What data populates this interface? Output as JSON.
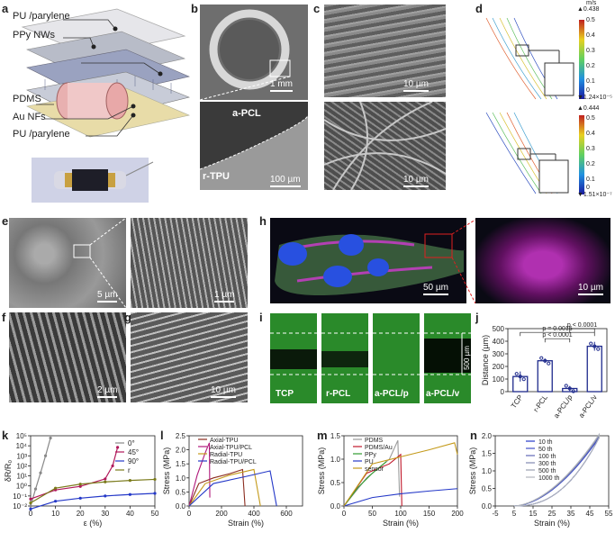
{
  "panels": {
    "a": {
      "label": "a",
      "layers": [
        "PU /parylene",
        "PPy NWs",
        "PDMS",
        "Au NFs",
        "PU /parylene"
      ]
    },
    "b": {
      "label": "b",
      "scale_top": "1 mm",
      "scale_bot": "100 µm",
      "text1": "a-PCL",
      "text2": "r-TPU"
    },
    "c": {
      "label": "c",
      "scale_top": "10 µm",
      "scale_bot": "10 µm"
    },
    "d": {
      "label": "d",
      "unit": "m/s",
      "max1": "▲0.438",
      "min1": "▼1.24×10⁻⁵",
      "max2": "▲0.444",
      "min2": "▼1.51×10⁻⁷",
      "ticks1": [
        "0.4",
        "0.3",
        "0.2",
        "0.1",
        "0"
      ],
      "ticks2": [
        "0.4",
        "0.3",
        "0.2",
        "0.1",
        "0"
      ],
      "ticks_top1": "0.5",
      "ticks_top2": "0.5"
    },
    "e": {
      "label": "e",
      "scale_left": "5 µm",
      "scale_right": "1 µm"
    },
    "f": {
      "label": "f",
      "scale": "2 µm"
    },
    "g": {
      "label": "g",
      "scale": "10 µm"
    },
    "h": {
      "label": "h",
      "scale_left": "50 µm",
      "scale_right": "10 µm"
    },
    "i": {
      "label": "i",
      "tiles": [
        "TCP",
        "r-PCL",
        "a-PCL/p",
        "a-PCL/v"
      ],
      "scale": "500 µm"
    },
    "j": {
      "label": "j"
    },
    "k": {
      "label": "k"
    },
    "l": {
      "label": "l"
    },
    "m": {
      "label": "m"
    },
    "n": {
      "label": "n"
    }
  },
  "colors": {
    "green": "#2e9b2e",
    "magenta": "#d23ad2",
    "blue": "#2438c8",
    "navy": "#1e2a8c"
  },
  "chart_data": [
    {
      "id": "j",
      "type": "bar",
      "title": "",
      "categories": [
        "TCP",
        "r-PCL",
        "a-PCL/p",
        "a-PCL/v"
      ],
      "values": [
        120,
        245,
        25,
        360
      ],
      "errors": [
        40,
        18,
        20,
        35
      ],
      "ylabel": "Distance (µm)",
      "xlabel": "",
      "ylim": [
        0,
        500
      ],
      "yticks": [
        0,
        100,
        200,
        300,
        400,
        500
      ],
      "annotations": [
        "p = 0.0015",
        "p < 0.0001",
        "p < 0.0001"
      ]
    },
    {
      "id": "k",
      "type": "line",
      "xlabel": "ε (%)",
      "ylabel": "δR/R₀",
      "xlim": [
        0,
        50
      ],
      "ylim_log": [
        -2,
        5
      ],
      "xticks": [
        0,
        10,
        20,
        30,
        40,
        50
      ],
      "yticks": [
        "10⁻²",
        "10⁻¹",
        "10⁰",
        "10¹",
        "10²",
        "10³",
        "10⁴",
        "10⁵"
      ],
      "series": [
        {
          "name": "0°",
          "color": "#888888",
          "x": [
            0,
            2,
            4,
            6,
            8
          ],
          "y": [
            0.01,
            0.5,
            20,
            1000,
            60000
          ]
        },
        {
          "name": "45°",
          "color": "#b0185a",
          "x": [
            0,
            10,
            20,
            30,
            33,
            35
          ],
          "y": [
            0.05,
            0.4,
            0.9,
            5,
            100,
            7000
          ]
        },
        {
          "name": "90°",
          "color": "#2438c8",
          "x": [
            0,
            10,
            20,
            30,
            40,
            50
          ],
          "y": [
            0.005,
            0.03,
            0.06,
            0.1,
            0.14,
            0.18
          ]
        },
        {
          "name": "r",
          "color": "#7a7a1a",
          "x": [
            0,
            10,
            20,
            30,
            40,
            50
          ],
          "y": [
            0.02,
            0.6,
            1.5,
            2.5,
            3.5,
            4.5
          ]
        }
      ]
    },
    {
      "id": "l",
      "type": "line",
      "xlabel": "Strain (%)",
      "ylabel": "Stress (MPa)",
      "xlim": [
        0,
        700
      ],
      "ylim": [
        0,
        2.5
      ],
      "xticks": [
        0,
        200,
        400,
        600
      ],
      "yticks": [
        0.0,
        0.5,
        1.0,
        1.5,
        2.0,
        2.5
      ],
      "series": [
        {
          "name": "Axial-TPU",
          "color": "#8b2c1e",
          "x": [
            0,
            60,
            150,
            250,
            330,
            345
          ],
          "y": [
            0,
            0.8,
            1.0,
            1.15,
            1.3,
            0
          ]
        },
        {
          "name": "Axial-TPU/PCL",
          "color": "#b0187a",
          "x": [
            0,
            50,
            100,
            125,
            128
          ],
          "y": [
            0,
            1.1,
            1.9,
            2.25,
            0.3
          ]
        },
        {
          "name": "Radial-TPU",
          "color": "#c49a1a",
          "x": [
            0,
            100,
            250,
            400,
            440
          ],
          "y": [
            0,
            0.8,
            1.1,
            1.3,
            0
          ]
        },
        {
          "name": "Radial-TPU/PCL",
          "color": "#2438c8",
          "x": [
            0,
            150,
            350,
            500,
            540
          ],
          "y": [
            0,
            0.8,
            1.05,
            1.25,
            0
          ]
        }
      ]
    },
    {
      "id": "m",
      "type": "line",
      "xlabel": "Strain (%)",
      "ylabel": "Stress (MPa)",
      "xlim": [
        0,
        200
      ],
      "ylim": [
        0,
        1.5
      ],
      "xticks": [
        0,
        50,
        100,
        150,
        200
      ],
      "yticks": [
        0.0,
        0.5,
        1.0,
        1.5
      ],
      "series": [
        {
          "name": "PDMS",
          "color": "#9a9a9a",
          "x": [
            0,
            40,
            80,
            95,
            98
          ],
          "y": [
            0,
            0.6,
            1.0,
            1.4,
            0.2
          ]
        },
        {
          "name": "PDMS/Au",
          "color": "#c0182a",
          "x": [
            0,
            40,
            80,
            100,
            102
          ],
          "y": [
            0,
            0.7,
            0.9,
            1.1,
            0
          ]
        },
        {
          "name": "PPy",
          "color": "#2e9b2e",
          "x": [
            0,
            25,
            50,
            75
          ],
          "y": [
            0,
            0.4,
            0.7,
            0.95
          ]
        },
        {
          "name": "PU",
          "color": "#2438c8",
          "x": [
            0,
            50,
            100,
            150,
            200
          ],
          "y": [
            0,
            0.18,
            0.26,
            0.32,
            0.37
          ]
        },
        {
          "name": "sensor",
          "color": "#c49a1a",
          "x": [
            0,
            50,
            100,
            150,
            195,
            200
          ],
          "y": [
            0,
            0.9,
            1.05,
            1.2,
            1.35,
            1.1
          ]
        }
      ]
    },
    {
      "id": "n",
      "type": "line",
      "xlabel": "Strain (%)",
      "ylabel": "Stress (MPa)",
      "xlim": [
        -5,
        55
      ],
      "ylim": [
        0,
        2.0
      ],
      "xticks": [
        -5,
        5,
        15,
        25,
        35,
        45,
        55
      ],
      "yticks": [
        0.0,
        0.5,
        1.0,
        1.5,
        2.0
      ],
      "series": [
        {
          "name": "10 th",
          "color": "#2438c8"
        },
        {
          "name": "50 th",
          "color": "#4150c8"
        },
        {
          "name": "100 th",
          "color": "#6068b8"
        },
        {
          "name": "300 th",
          "color": "#8088b0"
        },
        {
          "name": "500 th",
          "color": "#9aa0b0"
        },
        {
          "name": "1000 th",
          "color": "#b0b4bc"
        }
      ]
    }
  ]
}
